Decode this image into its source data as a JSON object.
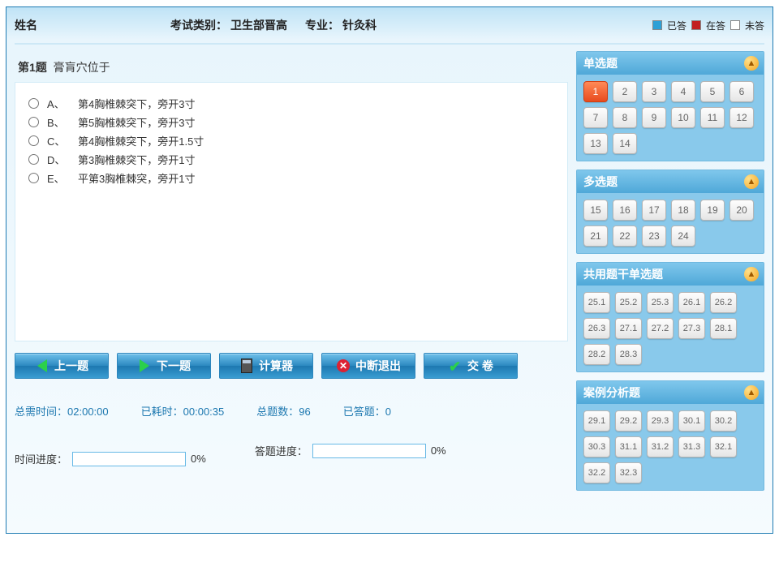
{
  "colors": {
    "frame_border": "#1e7bb3",
    "bg_top": "#bfe3f6",
    "bg_bottom": "#f5fbfe",
    "button_grad_top": "#6fc0ea",
    "button_grad_bottom": "#3a9dd2",
    "panel_bg": "#89c9eb",
    "panel_header_top": "#7fc7ec",
    "panel_header_bottom": "#4fa8d8",
    "current_btn_top": "#ff8a57",
    "current_btn_bottom": "#e84b1e",
    "stat_text": "#1d78b0",
    "progress_border": "#67b9e6"
  },
  "legend": {
    "answered_label": "已答",
    "answered_color": "#2ea0d6",
    "current_label": "在答",
    "current_color": "#c22020",
    "unanswered_label": "未答",
    "unanswered_color": "#ffffff"
  },
  "header": {
    "name_label": "姓名",
    "name_value": "",
    "exam_type_label": "考试类别：",
    "exam_type_value": "卫生部晋高",
    "major_label": "专业：",
    "major_value": "针灸科"
  },
  "question": {
    "prefix": "第",
    "number": "1",
    "suffix": "题",
    "stem": "膏肓穴位于",
    "options": [
      {
        "key": "A、",
        "text": "第4胸椎棘突下，旁开3寸"
      },
      {
        "key": "B、",
        "text": "第5胸椎棘突下，旁开3寸"
      },
      {
        "key": "C、",
        "text": "第4胸椎棘突下，旁开1.5寸"
      },
      {
        "key": "D、",
        "text": "第3胸椎棘突下，旁开1寸"
      },
      {
        "key": "E、",
        "text": "平第3胸椎棘突，旁开1寸"
      }
    ]
  },
  "actions": {
    "prev": "上一题",
    "next": "下一题",
    "calc": "计算器",
    "abort": "中断退出",
    "submit": "交 卷"
  },
  "stats": {
    "total_time_label": "总需时间：",
    "total_time_value": "02:00:00",
    "elapsed_label": "已耗时：",
    "elapsed_value": "00:00:35",
    "total_q_label": "总题数：",
    "total_q_value": "96",
    "answered_label": "已答题：",
    "answered_value": "0"
  },
  "progress": {
    "time_label": "时间进度：",
    "time_pct": "0%",
    "answer_label": "答题进度：",
    "answer_pct": "0%"
  },
  "nav": {
    "sections": [
      {
        "title": "单选题",
        "buttons": [
          "1",
          "2",
          "3",
          "4",
          "5",
          "6",
          "7",
          "8",
          "9",
          "10",
          "11",
          "12",
          "13",
          "14"
        ],
        "current": "1",
        "small": false
      },
      {
        "title": "多选题",
        "buttons": [
          "15",
          "16",
          "17",
          "18",
          "19",
          "20",
          "21",
          "22",
          "23",
          "24"
        ],
        "current": null,
        "small": false
      },
      {
        "title": "共用题干单选题",
        "buttons": [
          "25.1",
          "25.2",
          "25.3",
          "26.1",
          "26.2",
          "26.3",
          "27.1",
          "27.2",
          "27.3",
          "28.1",
          "28.2",
          "28.3"
        ],
        "current": null,
        "small": true
      },
      {
        "title": "案例分析题",
        "buttons": [
          "29.1",
          "29.2",
          "29.3",
          "30.1",
          "30.2",
          "30.3",
          "31.1",
          "31.2",
          "31.3",
          "32.1",
          "32.2",
          "32.3"
        ],
        "current": null,
        "small": true
      }
    ]
  }
}
